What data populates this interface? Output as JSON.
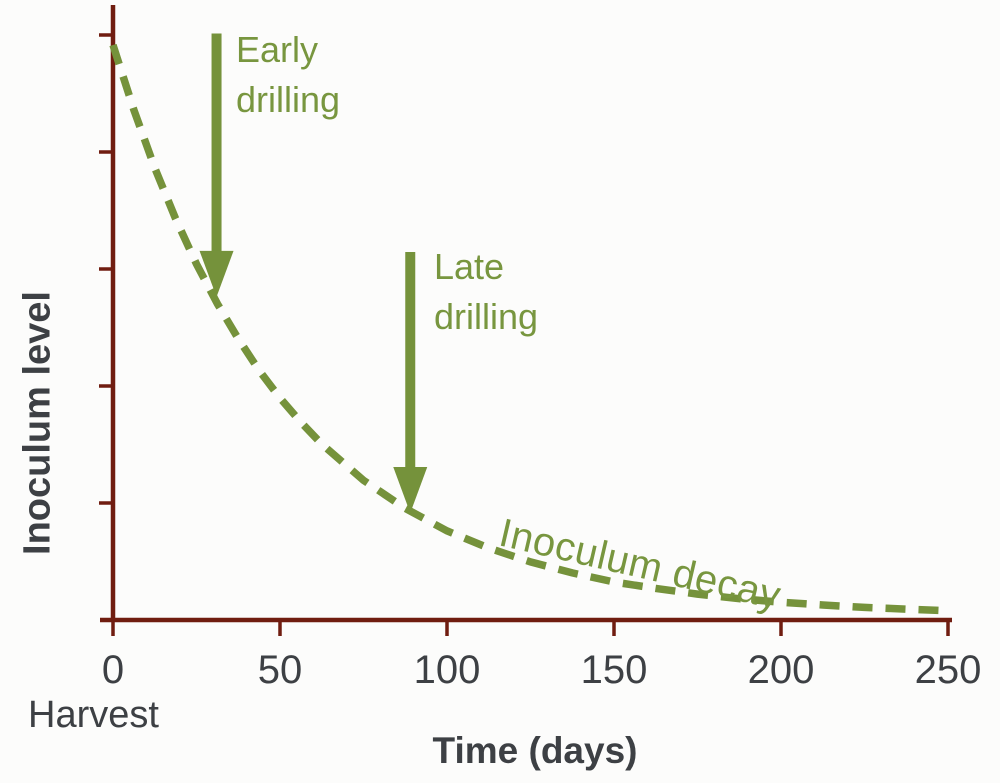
{
  "figure": {
    "background": "#fcfcfb",
    "axis_color": "#701d10",
    "label_color": "#3d4044",
    "green_stroke": "#75923b",
    "green_text": "#78963f"
  },
  "chart_data": {
    "type": "line",
    "title": "",
    "xlabel": "Time (days)",
    "ylabel": "Inoculum level",
    "x_origin_label": "Harvest",
    "xlim": [
      0,
      250
    ],
    "x_ticks": [
      0,
      50,
      100,
      150,
      200,
      250
    ],
    "y_axis": {
      "ticks_labeled": false,
      "tick_count": 5,
      "range_relative": [
        0,
        1.05
      ]
    },
    "grid": false,
    "legend": "none",
    "series": [
      {
        "name": "Inoculum decay",
        "style": "dashed",
        "color": "#75923b",
        "x": [
          0,
          6.25,
          12.5,
          18.75,
          25,
          31.25,
          37.5,
          43.75,
          50,
          56.25,
          62.5,
          75,
          87.5,
          100,
          112.5,
          125,
          137.5,
          150,
          162.5,
          175,
          187.5,
          200,
          212.5,
          225,
          237.5,
          250
        ],
        "y_relative": [
          1.0,
          0.887,
          0.786,
          0.698,
          0.619,
          0.55,
          0.489,
          0.434,
          0.386,
          0.344,
          0.306,
          0.243,
          0.194,
          0.155,
          0.125,
          0.101,
          0.082,
          0.066,
          0.055,
          0.045,
          0.037,
          0.031,
          0.026,
          0.022,
          0.019,
          0.016
        ]
      }
    ],
    "annotations": [
      {
        "type": "arrow-down",
        "label": "Early drilling",
        "x_day": 31,
        "from_level": 1.02,
        "to_level": 0.562
      },
      {
        "type": "arrow-down",
        "label": "Late drilling",
        "x_day": 89,
        "from_level": 0.64,
        "to_level": 0.186
      }
    ],
    "curve_label": {
      "rotation_deg": 13
    }
  }
}
